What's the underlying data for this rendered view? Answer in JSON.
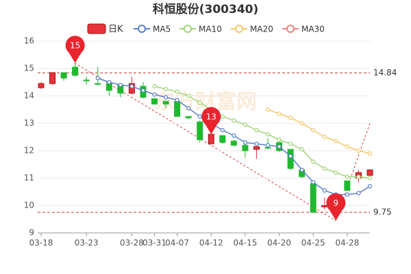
{
  "chart_data": {
    "type": "candlestick",
    "title": "科恒股份(300340)",
    "categories": [
      "03-18",
      null,
      null,
      null,
      "03-23",
      null,
      null,
      null,
      "03-28",
      null,
      "03-31",
      null,
      "04-07",
      null,
      null,
      "04-12",
      null,
      null,
      "04-15",
      null,
      null,
      "04-20",
      null,
      null,
      "04-25",
      null,
      null,
      "04-28",
      null,
      null
    ],
    "open": [
      14.3,
      14.45,
      14.85,
      15.05,
      14.58,
      14.45,
      14.45,
      14.4,
      14.1,
      14.35,
      13.9,
      13.8,
      13.8,
      13.25,
      13.05,
      12.25,
      12.55,
      12.35,
      12.2,
      12.05,
      12.12,
      12.3,
      12.05,
      11.3,
      10.8,
      9.95,
      9.9,
      10.9,
      11.0,
      11.1
    ],
    "close": [
      14.45,
      14.85,
      14.65,
      14.75,
      14.55,
      14.42,
      14.2,
      14.1,
      14.45,
      13.95,
      13.7,
      13.7,
      13.25,
      13.2,
      12.4,
      12.6,
      12.3,
      12.2,
      12.0,
      12.15,
      12.1,
      12.0,
      11.35,
      11.05,
      9.75,
      10.0,
      10.0,
      10.55,
      11.2,
      11.3
    ],
    "low": [
      14.25,
      14.4,
      14.55,
      14.7,
      14.4,
      14.4,
      14.0,
      13.95,
      14.05,
      13.9,
      13.7,
      13.55,
      13.25,
      13.15,
      12.3,
      12.25,
      12.25,
      12.15,
      11.75,
      11.7,
      12.05,
      11.95,
      11.3,
      11.0,
      9.75,
      9.85,
      9.45,
      10.55,
      10.85,
      11.1
    ],
    "high": [
      14.5,
      14.85,
      14.85,
      15.2,
      14.7,
      15.05,
      14.5,
      14.45,
      14.7,
      14.5,
      13.9,
      13.8,
      13.85,
      13.25,
      13.1,
      12.6,
      12.55,
      12.4,
      12.25,
      12.15,
      12.45,
      12.3,
      12.05,
      11.3,
      10.8,
      10.3,
      10.0,
      10.9,
      11.3,
      11.3
    ],
    "candle_name": "日K",
    "up_color": "#e8323c",
    "down_color": "#1fb92f",
    "series": [
      {
        "name": "MA5",
        "color": "#5b7fc9",
        "values": [
          null,
          null,
          null,
          null,
          null,
          14.65,
          14.5,
          14.4,
          14.35,
          14.2,
          14.05,
          13.95,
          13.85,
          13.55,
          13.25,
          13.0,
          12.75,
          12.55,
          12.3,
          12.25,
          12.2,
          12.15,
          11.8,
          11.3,
          10.85,
          10.55,
          10.4,
          10.4,
          10.45,
          10.7
        ]
      },
      {
        "name": "MA10",
        "color": "#a3d477",
        "values": [
          null,
          null,
          null,
          null,
          null,
          null,
          null,
          null,
          null,
          null,
          14.35,
          14.25,
          14.15,
          14.0,
          13.75,
          13.5,
          13.25,
          13.1,
          12.95,
          12.75,
          12.6,
          12.4,
          12.25,
          12.05,
          11.6,
          11.35,
          11.2,
          11.05,
          11.05,
          11.0
        ]
      },
      {
        "name": "MA20",
        "color": "#f5c867",
        "values": [
          null,
          null,
          null,
          null,
          null,
          null,
          null,
          null,
          null,
          null,
          null,
          null,
          null,
          null,
          null,
          null,
          null,
          null,
          null,
          null,
          13.5,
          13.35,
          13.2,
          13.0,
          12.75,
          12.5,
          12.35,
          12.15,
          12.0,
          11.9
        ]
      },
      {
        "name": "MA30",
        "color": "#f08080",
        "values": [
          null,
          null,
          null,
          null,
          null,
          null,
          null,
          null,
          null,
          null,
          null,
          null,
          null,
          null,
          null,
          null,
          null,
          null,
          null,
          null,
          null,
          null,
          null,
          null,
          null,
          null,
          null,
          null,
          null,
          null
        ]
      }
    ],
    "ref_lines": [
      14.84,
      9.75
    ],
    "ref_color": "#c0392b",
    "pins": [
      15,
      13,
      9
    ],
    "pin_color": "#e8242e",
    "watermark": "东方财富网",
    "ylim": [
      9,
      16
    ],
    "yticks": [
      9,
      10,
      11,
      12,
      13,
      14,
      15,
      16
    ],
    "grid": true
  }
}
